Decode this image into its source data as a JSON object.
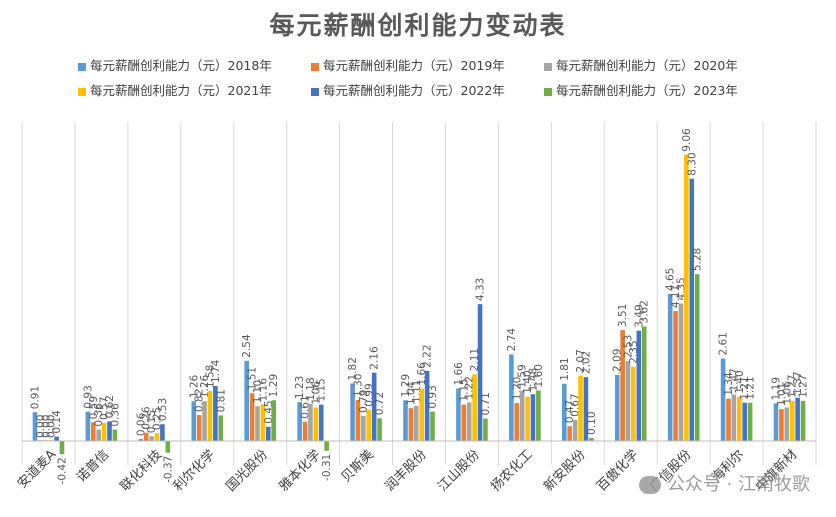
{
  "chart_data": {
    "type": "bar",
    "title": "每元薪酬创利能力变动表",
    "categories": [
      "安道麦A",
      "诺普信",
      "联化科技",
      "利尔化学",
      "国光股份",
      "雅本化学",
      "贝斯美",
      "润丰股份",
      "江山股份",
      "扬农化工",
      "新安股份",
      "百傲化学",
      "广信股份",
      "海利尔",
      "中旗新材"
    ],
    "series": [
      {
        "name": "每元薪酬创利能力（元）2018年",
        "color": "#5B9BD5",
        "values": [
          0.91,
          0.93,
          0.06,
          1.26,
          2.54,
          1.23,
          1.82,
          1.29,
          1.66,
          2.74,
          1.81,
          2.09,
          4.65,
          2.61,
          1.19
        ]
      },
      {
        "name": "每元薪酬创利能力（元）2019年",
        "color": "#ED7D31",
        "values": [
          0.0,
          0.59,
          0.26,
          0.82,
          1.51,
          0.61,
          1.3,
          1.04,
          1.15,
          1.2,
          0.47,
          3.51,
          4.11,
          1.34,
          1.01
        ]
      },
      {
        "name": "每元薪酬创利能力（元）2020年",
        "color": "#A5A5A5",
        "values": [
          0.0,
          0.36,
          0.15,
          1.26,
          1.1,
          1.18,
          0.79,
          1.11,
          1.22,
          1.59,
          0.67,
          2.53,
          4.35,
          1.47,
          1.06
        ]
      },
      {
        "name": "每元薪酬创利能力（元）2021年",
        "color": "#FFC000",
        "values": [
          0.0,
          0.57,
          0.25,
          1.58,
          1.16,
          1.06,
          0.99,
          1.66,
          2.11,
          1.4,
          2.07,
          2.35,
          9.06,
          1.4,
          1.27
        ]
      },
      {
        "name": "每元薪酬创利能力（元）2022年",
        "color": "#4472C4",
        "values": [
          0.14,
          0.62,
          0.53,
          1.74,
          0.45,
          1.15,
          2.16,
          2.22,
          4.33,
          1.48,
          2.02,
          3.49,
          8.3,
          1.21,
          1.37
        ]
      },
      {
        "name": "每元薪酬创利能力（元）2023年",
        "color": "#70AD47",
        "values": [
          -0.42,
          0.36,
          -0.37,
          0.81,
          1.29,
          -0.31,
          0.72,
          0.93,
          0.71,
          1.6,
          0.1,
          3.62,
          5.28,
          1.21,
          1.27
        ]
      }
    ],
    "ylim": [
      -0.6,
      10.2
    ],
    "grid": false,
    "legend_position": "top"
  },
  "watermark": {
    "text": "公众号 · 江南牧歌"
  }
}
